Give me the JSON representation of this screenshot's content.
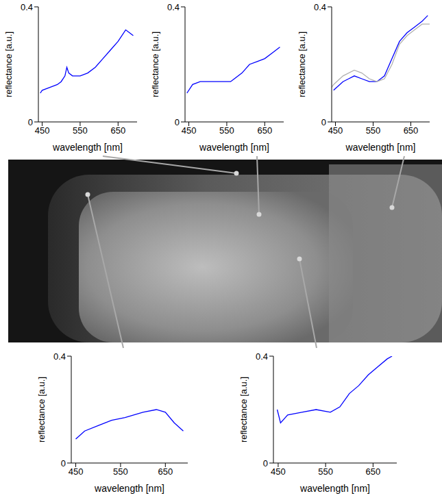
{
  "chart_data": [
    {
      "type": "line",
      "xlabel": "wavelength [nm]",
      "ylabel": "reflectance [a.u.]",
      "xlim": [
        440,
        700
      ],
      "ylim": [
        0,
        0.4
      ],
      "xticks": [
        450,
        550,
        650
      ],
      "yticks": [
        0,
        0.4
      ],
      "x": [
        445,
        450,
        470,
        490,
        500,
        510,
        515,
        520,
        530,
        550,
        570,
        590,
        610,
        630,
        650,
        670,
        680,
        690
      ],
      "series": [
        {
          "color": "#0000ff",
          "values": [
            0.1,
            0.11,
            0.12,
            0.13,
            0.14,
            0.16,
            0.19,
            0.17,
            0.16,
            0.16,
            0.17,
            0.19,
            0.22,
            0.25,
            0.28,
            0.32,
            0.31,
            0.3
          ]
        }
      ]
    },
    {
      "type": "line",
      "xlabel": "wavelength [nm]",
      "ylabel": "reflectance [a.u.]",
      "xlim": [
        440,
        700
      ],
      "ylim": [
        0,
        0.4
      ],
      "xticks": [
        450,
        550,
        650
      ],
      "yticks": [
        0,
        0.4
      ],
      "x": [
        445,
        460,
        480,
        500,
        520,
        540,
        560,
        570,
        590,
        610,
        630,
        650,
        670,
        690
      ],
      "series": [
        {
          "color": "#0000ff",
          "values": [
            0.1,
            0.13,
            0.14,
            0.14,
            0.14,
            0.14,
            0.14,
            0.15,
            0.17,
            0.2,
            0.21,
            0.22,
            0.24,
            0.26
          ]
        }
      ]
    },
    {
      "type": "line",
      "xlabel": "wavelength [nm]",
      "ylabel": "reflectance [a.u.]",
      "xlim": [
        440,
        700
      ],
      "ylim": [
        0,
        0.4
      ],
      "xticks": [
        450,
        550,
        650
      ],
      "yticks": [
        0,
        0.4
      ],
      "x": [
        440,
        445,
        470,
        500,
        520,
        540,
        560,
        580,
        600,
        620,
        640,
        660,
        680,
        695,
        700
      ],
      "series": [
        {
          "color": "#0000ff",
          "values": [
            null,
            0.11,
            0.14,
            0.16,
            0.15,
            0.14,
            0.14,
            0.16,
            0.22,
            0.28,
            0.31,
            0.33,
            0.35,
            0.37,
            null
          ]
        },
        {
          "color": "#b0b0b0",
          "values": [
            0.12,
            0.13,
            0.16,
            0.18,
            0.17,
            0.15,
            0.14,
            0.15,
            0.2,
            0.27,
            0.3,
            0.32,
            0.34,
            0.34,
            0.34
          ]
        }
      ]
    },
    {
      "type": "line",
      "xlabel": "wavelength [nm]",
      "ylabel": "reflectance [a.u.]",
      "xlim": [
        440,
        700
      ],
      "ylim": [
        0,
        0.4
      ],
      "xticks": [
        450,
        550,
        650
      ],
      "yticks": [
        0,
        0.4
      ],
      "x": [
        450,
        470,
        500,
        530,
        560,
        600,
        630,
        650,
        670,
        690
      ],
      "series": [
        {
          "color": "#0000ff",
          "values": [
            0.09,
            0.12,
            0.14,
            0.16,
            0.17,
            0.19,
            0.2,
            0.19,
            0.15,
            0.12
          ]
        }
      ]
    },
    {
      "type": "line",
      "xlabel": "wavelength [nm]",
      "ylabel": "reflectance [a.u.]",
      "xlim": [
        440,
        700
      ],
      "ylim": [
        0,
        0.4
      ],
      "xticks": [
        450,
        550,
        650
      ],
      "yticks": [
        0,
        0.4
      ],
      "x": [
        448,
        455,
        470,
        500,
        530,
        560,
        580,
        600,
        620,
        640,
        660,
        680,
        690
      ],
      "series": [
        {
          "color": "#0000ff",
          "values": [
            0.2,
            0.15,
            0.18,
            0.19,
            0.2,
            0.19,
            0.21,
            0.26,
            0.29,
            0.33,
            0.36,
            0.39,
            0.4
          ]
        }
      ]
    }
  ]
}
